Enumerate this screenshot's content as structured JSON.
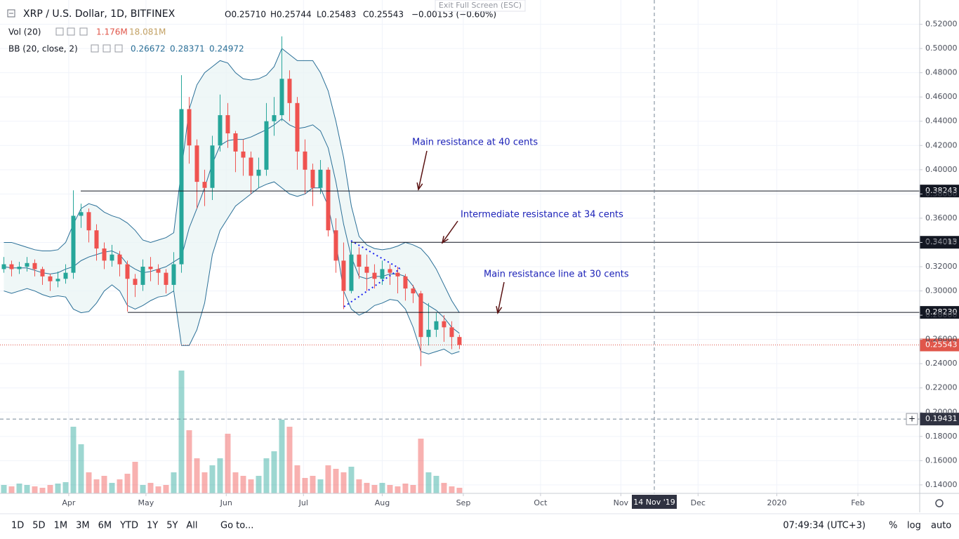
{
  "header": {
    "symbol": "XRP / U.S. Dollar, 1D, BITFINEX",
    "ohlc": [
      "O0.25710",
      "H0.25744",
      "L0.25483",
      "C0.25543",
      "−0.00153 (−0.60%)"
    ],
    "tooltip": "Exit Full Screen (ESC)"
  },
  "indicators": [
    {
      "name": "Vol (20)",
      "values": [
        "1.176M",
        "18.081M"
      ]
    },
    {
      "name": "BB (20, close, 2)",
      "values": [
        "0.26672",
        "0.28371",
        "0.24972"
      ]
    }
  ],
  "toolbar": {
    "ranges": [
      "1D",
      "5D",
      "1M",
      "3M",
      "6M",
      "YTD",
      "1Y",
      "5Y",
      "All"
    ],
    "goto": "Go to...",
    "clock": "07:49:34 (UTC+3)",
    "options": [
      "%",
      "log",
      "auto"
    ]
  },
  "chart_data": {
    "type": "candlestick",
    "xlim": [
      -0.5,
      118.6
    ],
    "xticks": [
      {
        "value": 8.4,
        "label": "Apr"
      },
      {
        "value": 18.4,
        "label": "May"
      },
      {
        "value": 28.8,
        "label": "Jun"
      },
      {
        "value": 38.8,
        "label": "Jul"
      },
      {
        "value": 49.0,
        "label": "Aug"
      },
      {
        "value": 59.5,
        "label": "Sep"
      },
      {
        "value": 69.5,
        "label": "Oct"
      },
      {
        "value": 79.9,
        "label": "Nov"
      },
      {
        "value": 89.9,
        "label": "Dec"
      },
      {
        "value": 100.1,
        "label": "2020"
      },
      {
        "value": 110.6,
        "label": "Feb"
      }
    ],
    "ylim": [
      0.133,
      0.54
    ],
    "yticks": [
      {
        "value": 0.52,
        "label": "0.52000"
      },
      {
        "value": 0.5,
        "label": "0.50000"
      },
      {
        "value": 0.48,
        "label": "0.48000"
      },
      {
        "value": 0.46,
        "label": "0.46000"
      },
      {
        "value": 0.44,
        "label": "0.44000"
      },
      {
        "value": 0.42,
        "label": "0.42000"
      },
      {
        "value": 0.4,
        "label": "0.40000"
      },
      {
        "value": 0.38,
        "label": "0.38000"
      },
      {
        "value": 0.36,
        "label": "0.36000"
      },
      {
        "value": 0.34,
        "label": "0.34000"
      },
      {
        "value": 0.32,
        "label": "0.32000"
      },
      {
        "value": 0.3,
        "label": "0.30000"
      },
      {
        "value": 0.28,
        "label": "0.28000"
      },
      {
        "value": 0.26,
        "label": "0.26000"
      },
      {
        "value": 0.24,
        "label": "0.24000"
      },
      {
        "value": 0.22,
        "label": "0.22000"
      },
      {
        "value": 0.2,
        "label": "0.20000"
      },
      {
        "value": 0.18,
        "label": "0.18000"
      },
      {
        "value": 0.16,
        "label": "0.16000"
      },
      {
        "value": 0.14,
        "label": "0.14000"
      }
    ],
    "grid": true,
    "colors": {
      "up": "#26a69a",
      "down": "#ef5350",
      "band": "#2a6f97",
      "fill": "#e8f4f4",
      "annotation": "#1c22b8",
      "arrow": "#5a1212"
    },
    "open": [
      0.318,
      0.322,
      0.318,
      0.32,
      0.323,
      0.318,
      0.312,
      0.308,
      0.31,
      0.315,
      0.362,
      0.365,
      0.35,
      0.335,
      0.325,
      0.33,
      0.322,
      0.31,
      0.305,
      0.32,
      0.318,
      0.315,
      0.305,
      0.322,
      0.45,
      0.42,
      0.39,
      0.385,
      0.42,
      0.445,
      0.43,
      0.415,
      0.41,
      0.395,
      0.4,
      0.44,
      0.445,
      0.475,
      0.455,
      0.415,
      0.4,
      0.385,
      0.4,
      0.35,
      0.325,
      0.3,
      0.33,
      0.32,
      0.315,
      0.31,
      0.318,
      0.315,
      0.312,
      0.302,
      0.298,
      0.262,
      0.268,
      0.275,
      0.27,
      0.262
    ],
    "high": [
      0.328,
      0.325,
      0.324,
      0.328,
      0.326,
      0.32,
      0.314,
      0.316,
      0.322,
      0.383,
      0.372,
      0.368,
      0.355,
      0.34,
      0.338,
      0.333,
      0.325,
      0.314,
      0.326,
      0.328,
      0.322,
      0.318,
      0.332,
      0.478,
      0.46,
      0.425,
      0.4,
      0.428,
      0.462,
      0.455,
      0.432,
      0.425,
      0.415,
      0.41,
      0.455,
      0.46,
      0.51,
      0.482,
      0.46,
      0.425,
      0.405,
      0.408,
      0.402,
      0.36,
      0.34,
      0.34,
      0.336,
      0.33,
      0.322,
      0.325,
      0.322,
      0.32,
      0.314,
      0.305,
      0.3,
      0.29,
      0.282,
      0.28,
      0.275,
      0.264
    ],
    "low": [
      0.315,
      0.312,
      0.314,
      0.316,
      0.312,
      0.305,
      0.3,
      0.303,
      0.306,
      0.31,
      0.352,
      0.34,
      0.325,
      0.318,
      0.32,
      0.312,
      0.283,
      0.295,
      0.3,
      0.308,
      0.305,
      0.298,
      0.3,
      0.315,
      0.405,
      0.368,
      0.37,
      0.375,
      0.415,
      0.418,
      0.398,
      0.395,
      0.38,
      0.385,
      0.395,
      0.428,
      0.44,
      0.44,
      0.4,
      0.38,
      0.37,
      0.38,
      0.345,
      0.315,
      0.285,
      0.298,
      0.31,
      0.3,
      0.302,
      0.305,
      0.305,
      0.298,
      0.292,
      0.29,
      0.238,
      0.255,
      0.262,
      0.258,
      0.252,
      0.252
    ],
    "close": [
      0.322,
      0.318,
      0.32,
      0.323,
      0.318,
      0.312,
      0.308,
      0.31,
      0.315,
      0.362,
      0.365,
      0.35,
      0.335,
      0.325,
      0.33,
      0.322,
      0.31,
      0.305,
      0.32,
      0.318,
      0.315,
      0.305,
      0.322,
      0.45,
      0.42,
      0.39,
      0.385,
      0.42,
      0.445,
      0.43,
      0.415,
      0.41,
      0.395,
      0.4,
      0.44,
      0.445,
      0.475,
      0.455,
      0.415,
      0.4,
      0.385,
      0.4,
      0.35,
      0.325,
      0.3,
      0.33,
      0.32,
      0.315,
      0.31,
      0.318,
      0.315,
      0.312,
      0.302,
      0.298,
      0.262,
      0.268,
      0.275,
      0.27,
      0.262,
      0.2554
    ],
    "volume": [
      12,
      10,
      14,
      12,
      10,
      8,
      12,
      14,
      16,
      95,
      70,
      30,
      20,
      25,
      15,
      20,
      28,
      45,
      12,
      15,
      10,
      12,
      30,
      175,
      90,
      50,
      30,
      40,
      50,
      85,
      30,
      25,
      20,
      25,
      50,
      60,
      105,
      95,
      40,
      22,
      25,
      20,
      40,
      35,
      30,
      38,
      20,
      15,
      12,
      15,
      12,
      10,
      14,
      12,
      78,
      30,
      25,
      15,
      10,
      8
    ],
    "bb_upper": [
      0.34,
      0.34,
      0.338,
      0.336,
      0.334,
      0.333,
      0.333,
      0.334,
      0.34,
      0.355,
      0.368,
      0.372,
      0.37,
      0.365,
      0.362,
      0.36,
      0.356,
      0.35,
      0.342,
      0.34,
      0.342,
      0.344,
      0.348,
      0.4,
      0.45,
      0.47,
      0.48,
      0.485,
      0.49,
      0.488,
      0.48,
      0.475,
      0.474,
      0.475,
      0.478,
      0.485,
      0.5,
      0.495,
      0.49,
      0.49,
      0.49,
      0.48,
      0.465,
      0.44,
      0.41,
      0.37,
      0.345,
      0.338,
      0.335,
      0.334,
      0.335,
      0.337,
      0.34,
      0.338,
      0.335,
      0.328,
      0.318,
      0.305,
      0.292,
      0.282
    ],
    "bb_mid": [
      0.32,
      0.319,
      0.319,
      0.319,
      0.317,
      0.315,
      0.314,
      0.315,
      0.318,
      0.32,
      0.325,
      0.328,
      0.33,
      0.332,
      0.333,
      0.33,
      0.322,
      0.318,
      0.315,
      0.316,
      0.318,
      0.32,
      0.324,
      0.328,
      0.352,
      0.368,
      0.385,
      0.405,
      0.42,
      0.424,
      0.425,
      0.425,
      0.427,
      0.43,
      0.433,
      0.437,
      0.442,
      0.437,
      0.434,
      0.435,
      0.437,
      0.432,
      0.418,
      0.39,
      0.355,
      0.328,
      0.312,
      0.31,
      0.312,
      0.312,
      0.314,
      0.314,
      0.312,
      0.304,
      0.292,
      0.288,
      0.284,
      0.278,
      0.27,
      0.265
    ],
    "bb_lower": [
      0.3,
      0.298,
      0.3,
      0.302,
      0.3,
      0.297,
      0.295,
      0.296,
      0.295,
      0.285,
      0.282,
      0.283,
      0.29,
      0.3,
      0.305,
      0.3,
      0.288,
      0.285,
      0.288,
      0.292,
      0.295,
      0.296,
      0.3,
      0.255,
      0.255,
      0.268,
      0.29,
      0.33,
      0.35,
      0.36,
      0.37,
      0.375,
      0.38,
      0.385,
      0.388,
      0.39,
      0.385,
      0.38,
      0.378,
      0.38,
      0.385,
      0.385,
      0.37,
      0.34,
      0.3,
      0.285,
      0.28,
      0.283,
      0.288,
      0.29,
      0.293,
      0.292,
      0.285,
      0.27,
      0.25,
      0.248,
      0.25,
      0.252,
      0.248,
      0.25
    ],
    "levels": [
      0.38243,
      0.34013,
      {
        "value": 0.2823,
        "label": "0.28230"
      }
    ],
    "last_price": 0.25543,
    "crosshair": {
      "price": 0.19431,
      "date": "14 Nov '19"
    },
    "annotations": [
      "Main resistance at 40 cents",
      "Intermediate resistance at 34 cents",
      "Main resistance line at 30 cents"
    ]
  }
}
